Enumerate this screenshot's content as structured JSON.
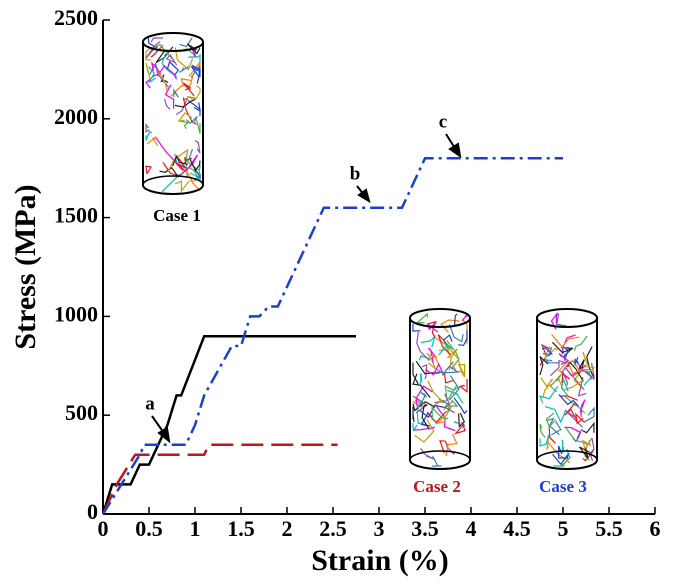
{
  "chart_data": {
    "type": "line",
    "xlabel": "Strain (%)",
    "ylabel": "Stress (MPa)",
    "xlim": [
      0,
      6
    ],
    "xticks": [
      0,
      0.5,
      1,
      1.5,
      2,
      2.5,
      3,
      3.5,
      4,
      4.5,
      5,
      5.5,
      6
    ],
    "ylim": [
      0,
      2500
    ],
    "yticks": [
      0,
      500,
      1000,
      1500,
      2000,
      2500
    ],
    "series": [
      {
        "name": "Case 1",
        "color": "#000000",
        "dash": "solid",
        "x": [
          0,
          0.1,
          0.3,
          0.4,
          0.5,
          0.6,
          0.7,
          0.8,
          0.85,
          1.1,
          2.75
        ],
        "values": [
          0,
          150,
          150,
          250,
          250,
          350,
          450,
          600,
          600,
          900,
          900
        ]
      },
      {
        "name": "Case 2",
        "color": "#c0161c",
        "dash": "dashed",
        "x": [
          0,
          0.15,
          0.35,
          1.1,
          1.15,
          2.55
        ],
        "values": [
          0,
          150,
          300,
          300,
          350,
          350
        ]
      },
      {
        "name": "Case 3",
        "color": "#1a3fd6",
        "dash": "dashdot",
        "x": [
          0,
          0.2,
          0.4,
          0.45,
          0.9,
          1.0,
          1.1,
          1.4,
          1.5,
          1.6,
          1.7,
          1.8,
          1.9,
          2.4,
          3.25,
          3.5,
          5.0
        ],
        "values": [
          0,
          150,
          300,
          350,
          350,
          450,
          600,
          850,
          850,
          1000,
          1000,
          1050,
          1050,
          1550,
          1550,
          1800,
          1800
        ]
      }
    ],
    "annotations": [
      "a",
      "b",
      "c"
    ]
  }
}
